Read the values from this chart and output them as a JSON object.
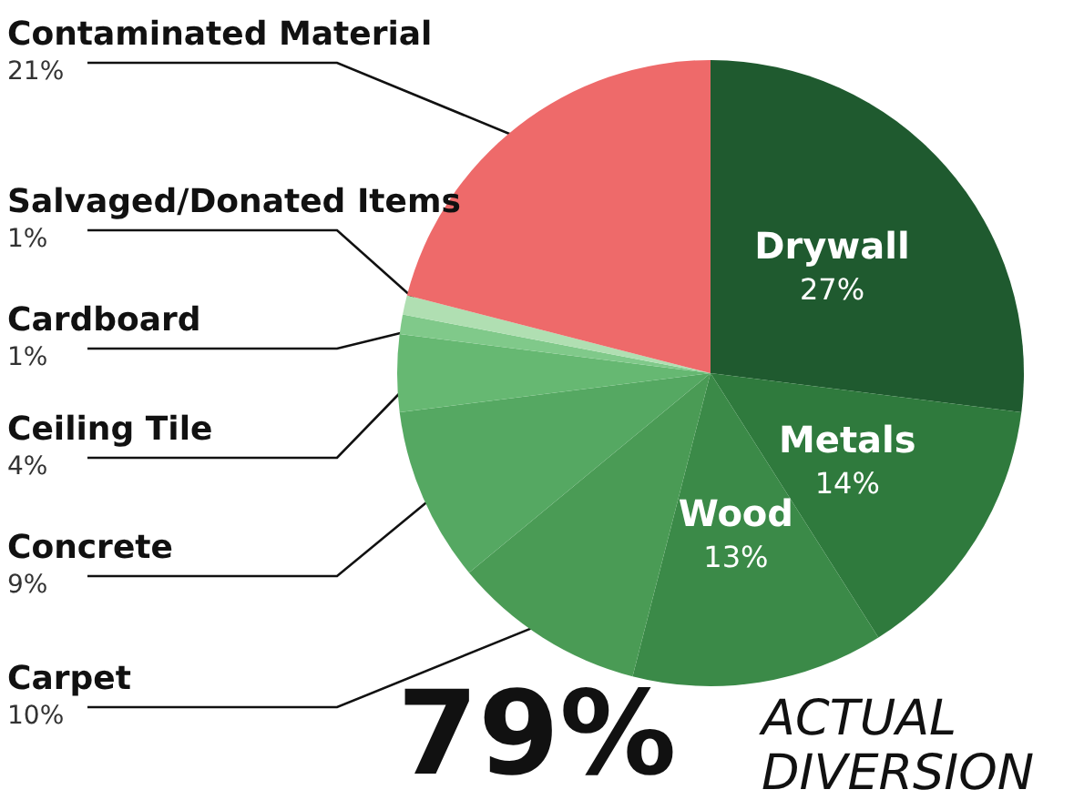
{
  "chart_data": {
    "type": "pie",
    "categories": [
      "Drywall",
      "Metals",
      "Wood",
      "Carpet",
      "Concrete",
      "Ceiling Tile",
      "Cardboard",
      "Salvaged/Donated Items",
      "Contaminated Material"
    ],
    "values": [
      27,
      14,
      13,
      10,
      9,
      4,
      1,
      1,
      21
    ],
    "value_labels": [
      "27%",
      "14%",
      "13%",
      "10%",
      "9%",
      "4%",
      "1%",
      "1%",
      "21%"
    ],
    "colors": [
      "#1f5a2f",
      "#2f7a3d",
      "#3b8a48",
      "#4a9b55",
      "#55a862",
      "#66b872",
      "#80c98a",
      "#b0dfb2",
      "#ee6a6a"
    ],
    "annotations": [
      "79%",
      "ACTUAL DIVERSION"
    ]
  }
}
